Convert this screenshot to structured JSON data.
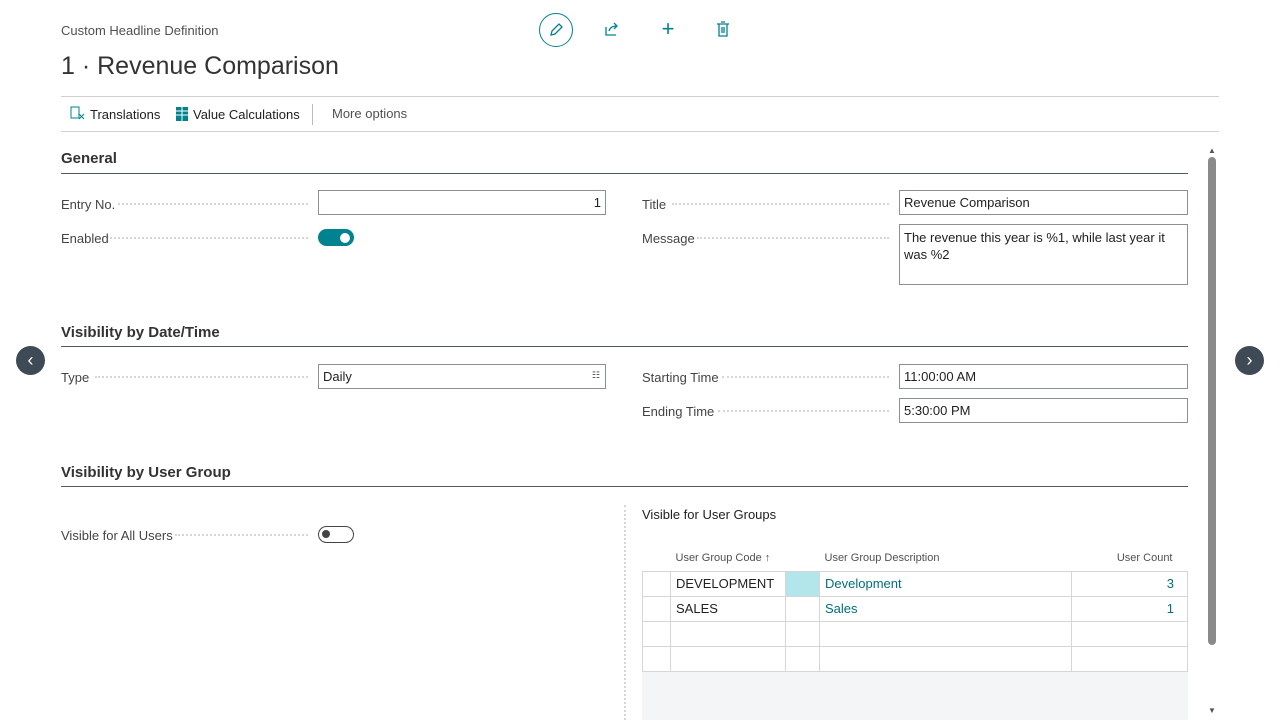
{
  "header": {
    "caption": "Custom Headline Definition",
    "title": "1 · Revenue Comparison",
    "icons": [
      "edit-icon",
      "share-icon",
      "new-icon",
      "delete-icon"
    ]
  },
  "actions": {
    "translations": "Translations",
    "value_calculations": "Value Calculations",
    "more": "More options"
  },
  "general": {
    "heading": "General",
    "entry_no_label": "Entry No.",
    "entry_no": "1",
    "enabled_label": "Enabled",
    "enabled": true,
    "title_label": "Title",
    "title": "Revenue Comparison",
    "message_label": "Message",
    "message": "The revenue this year is %1, while last year it was %2"
  },
  "datetime": {
    "heading": "Visibility by Date/Time",
    "type_label": "Type",
    "type": "Daily",
    "start_label": "Starting Time",
    "start": "11:00:00 AM",
    "end_label": "Ending Time",
    "end": "5:30:00 PM"
  },
  "usergroup": {
    "heading": "Visibility by User Group",
    "visible_all_label": "Visible for All Users",
    "visible_all": false,
    "part_title": "Visible for User Groups",
    "columns": [
      "User Group Code ↑",
      "User Group Description",
      "User Count"
    ],
    "rows": [
      {
        "code": "DEVELOPMENT",
        "description": "Development",
        "count": "3"
      },
      {
        "code": "SALES",
        "description": "Sales",
        "count": "1"
      },
      {
        "code": "",
        "description": "",
        "count": ""
      },
      {
        "code": "",
        "description": "",
        "count": ""
      }
    ]
  },
  "colors": {
    "accent": "#00838f",
    "selected_cell": "#b2e6ea"
  }
}
